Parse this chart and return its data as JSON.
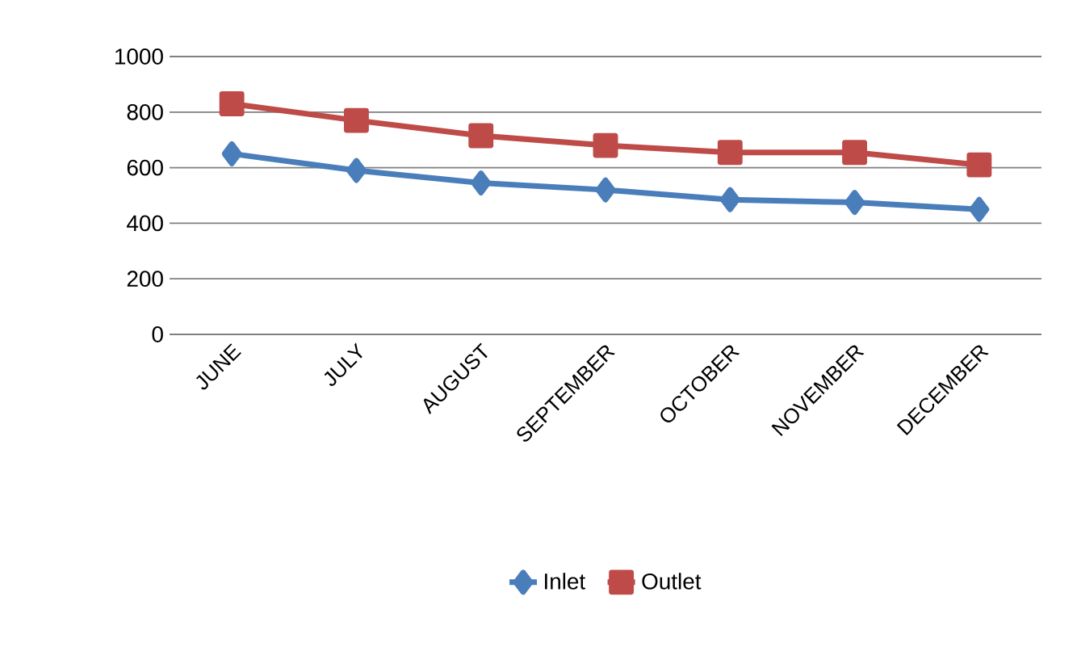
{
  "chart_data": {
    "type": "line",
    "categories": [
      "JUNE",
      "JULY",
      "AUGUST",
      "SEPTEMBER",
      "OCTOBER",
      "NOVEMBER",
      "DECEMBER"
    ],
    "series": [
      {
        "name": "Inlet",
        "color": "#4a7ebb",
        "marker": "diamond",
        "values": [
          650,
          590,
          545,
          520,
          485,
          475,
          450
        ]
      },
      {
        "name": "Outlet",
        "color": "#be4b48",
        "marker": "square",
        "values": [
          830,
          770,
          715,
          680,
          655,
          655,
          610
        ]
      }
    ],
    "ylim": [
      0,
      1000
    ],
    "yticks": [
      0,
      200,
      400,
      600,
      800,
      1000
    ],
    "grid": "y",
    "legend": "bottom",
    "line_style": "solid"
  }
}
